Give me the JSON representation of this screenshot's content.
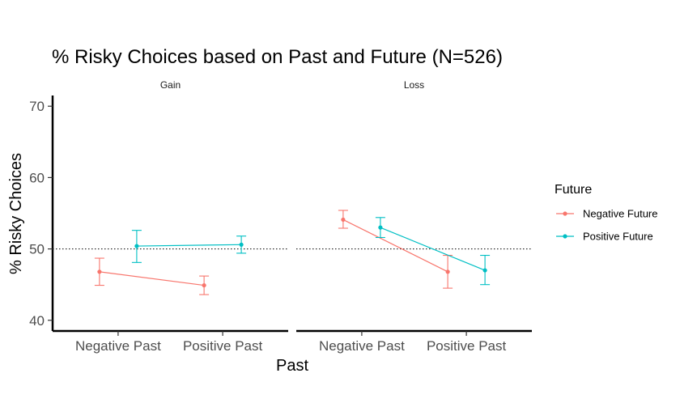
{
  "chart_data": {
    "type": "line",
    "title": "% Risky Choices based on Past and Future (N=526)",
    "xlabel": "Past",
    "ylabel": "% Risky Choices",
    "ylim": [
      38.5,
      71.5
    ],
    "yticks": [
      40,
      50,
      60,
      70
    ],
    "reference_line": 50,
    "categories": [
      "Negative Past",
      "Positive Past"
    ],
    "legend": {
      "title": "Future",
      "position": "right"
    },
    "grid": false,
    "panels": [
      {
        "label": "Gain",
        "series": [
          {
            "name": "Negative Future",
            "color": "#F8766D",
            "values": [
              46.8,
              44.9
            ],
            "lower": [
              44.9,
              43.6
            ],
            "upper": [
              48.7,
              46.2
            ]
          },
          {
            "name": "Positive Future",
            "color": "#00BFC4",
            "values": [
              50.4,
              50.6
            ],
            "lower": [
              48.1,
              49.4
            ],
            "upper": [
              52.6,
              51.8
            ]
          }
        ]
      },
      {
        "label": "Loss",
        "series": [
          {
            "name": "Negative Future",
            "color": "#F8766D",
            "values": [
              54.1,
              46.8
            ],
            "lower": [
              52.9,
              44.5
            ],
            "upper": [
              55.4,
              49.1
            ]
          },
          {
            "name": "Positive Future",
            "color": "#00BFC4",
            "values": [
              53.0,
              47.0
            ],
            "lower": [
              51.6,
              45.0
            ],
            "upper": [
              54.4,
              49.1
            ]
          }
        ]
      }
    ]
  }
}
